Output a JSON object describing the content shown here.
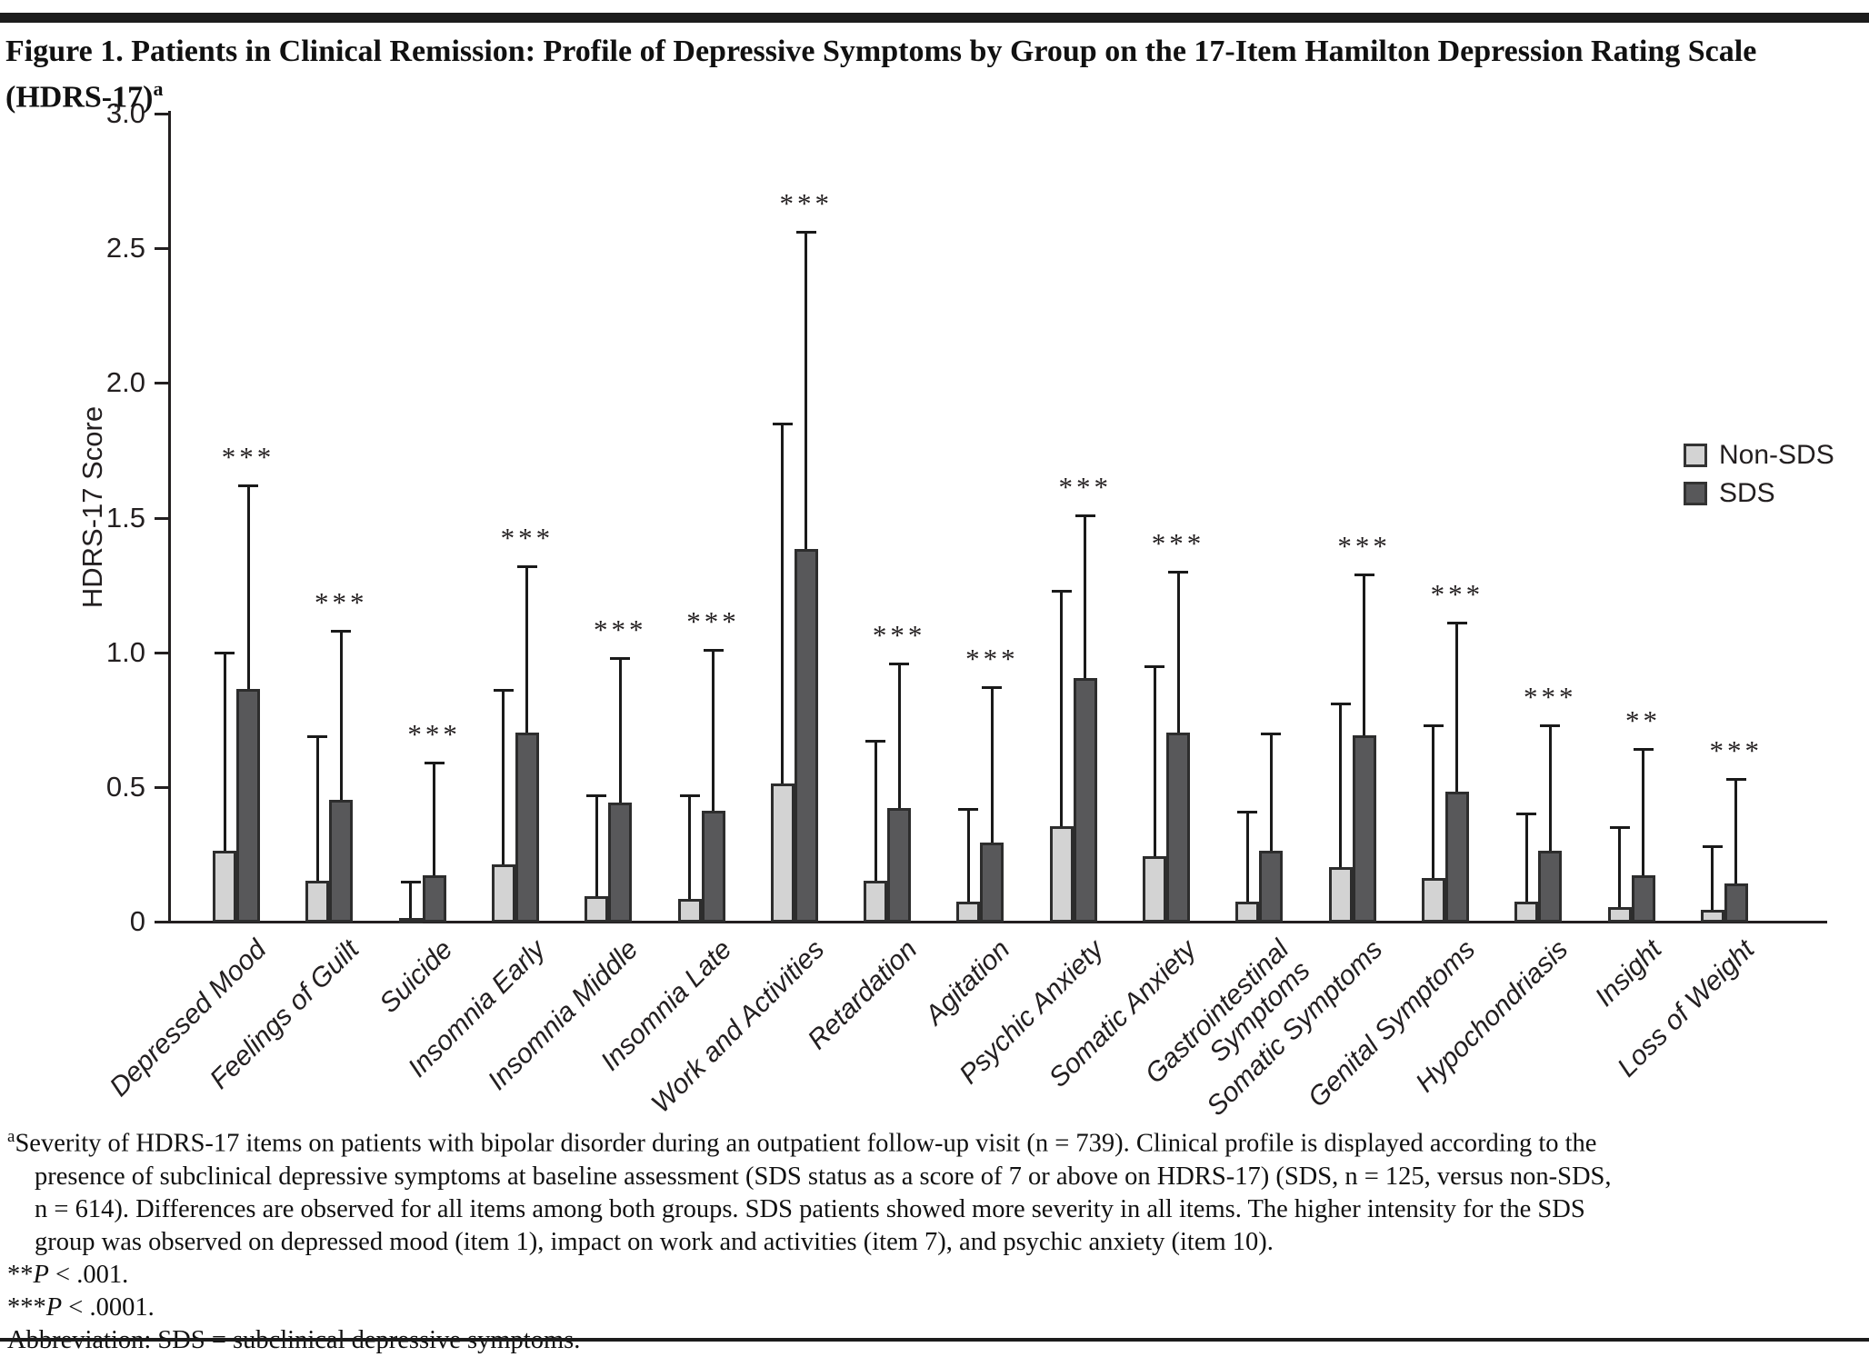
{
  "page": {
    "title": "Figure 1. Patients in Clinical Remission: Profile of Depressive Symptoms by Group on the 17-Item Hamilton Depression Rating Scale (HDRS-17)",
    "title_sup": "a"
  },
  "chart_data": {
    "type": "bar",
    "title": "",
    "ylabel": "HDRS-17 Score",
    "xlabel": "",
    "ylim": [
      0,
      3.0
    ],
    "ytick_step": 0.5,
    "ytick_labels": [
      "0",
      "0.5",
      "1.0",
      "1.5",
      "2.0",
      "2.5",
      "3.0"
    ],
    "grid": false,
    "legend_position": "right-upper-middle",
    "legend": [
      {
        "name": "Non-SDS",
        "color": "#d3d3d3"
      },
      {
        "name": "SDS",
        "color": "#58585a"
      }
    ],
    "categories": [
      "Depressed Mood",
      "Feelings of Guilt",
      "Suicide",
      "Insomnia Early",
      "Insomnia Middle",
      "Insomnia Late",
      "Work and Activities",
      "Retardation",
      "Agitation",
      "Psychic Anxiety",
      "Somatic Anxiety",
      "Gastrointestinal\nSymptoms",
      "Somatic Symptoms",
      "Genital Symptoms",
      "Hypochondriasis",
      "Insight",
      "Loss of Weight"
    ],
    "series": [
      {
        "name": "Non-SDS",
        "color": "#d3d3d3",
        "values": [
          0.26,
          0.15,
          0.01,
          0.21,
          0.09,
          0.08,
          0.51,
          0.15,
          0.07,
          0.35,
          0.24,
          0.07,
          0.2,
          0.16,
          0.07,
          0.05,
          0.04
        ],
        "error_top": [
          1.0,
          0.69,
          0.15,
          0.86,
          0.47,
          0.47,
          1.85,
          0.67,
          0.42,
          1.23,
          0.95,
          0.41,
          0.81,
          0.73,
          0.4,
          0.35,
          0.28
        ]
      },
      {
        "name": "SDS",
        "color": "#58585a",
        "values": [
          0.86,
          0.45,
          0.17,
          0.7,
          0.44,
          0.41,
          1.38,
          0.42,
          0.29,
          0.9,
          0.7,
          0.26,
          0.69,
          0.48,
          0.26,
          0.17,
          0.14
        ],
        "error_top": [
          1.62,
          1.08,
          0.59,
          1.32,
          0.98,
          1.01,
          2.56,
          0.96,
          0.87,
          1.51,
          1.3,
          0.7,
          1.29,
          1.11,
          0.73,
          0.64,
          0.53
        ]
      }
    ],
    "significance": [
      "***",
      "***",
      "***",
      "***",
      "***",
      "***",
      "***",
      "***",
      "***",
      "***",
      "***",
      "",
      "***",
      "***",
      "***",
      "**",
      "***"
    ]
  },
  "footnote": {
    "sup": "a",
    "line1": "Severity of HDRS-17 items on patients with bipolar disorder during an outpatient follow-up visit (n = 739). Clinical profile is displayed according to the",
    "line2": "presence of subclinical depressive symptoms at baseline assessment (SDS status as a score of 7 or above on HDRS-17) (SDS, n = 125, versus non-SDS,",
    "line3": "n = 614). Differences are observed for all items among both groups. SDS patients showed more severity in all items. The higher intensity for the SDS",
    "line4": "group was observed on depressed mood (item 1), impact on work and activities (item 7), and psychic anxiety (item 10).",
    "p1_stars": "**",
    "p1_p": "P",
    "p1_rest": " < .001.",
    "p2_stars": "***",
    "p2_p": "P",
    "p2_rest": " < .0001.",
    "abbrev": "Abbreviation: SDS = subclinical depressive symptoms."
  }
}
